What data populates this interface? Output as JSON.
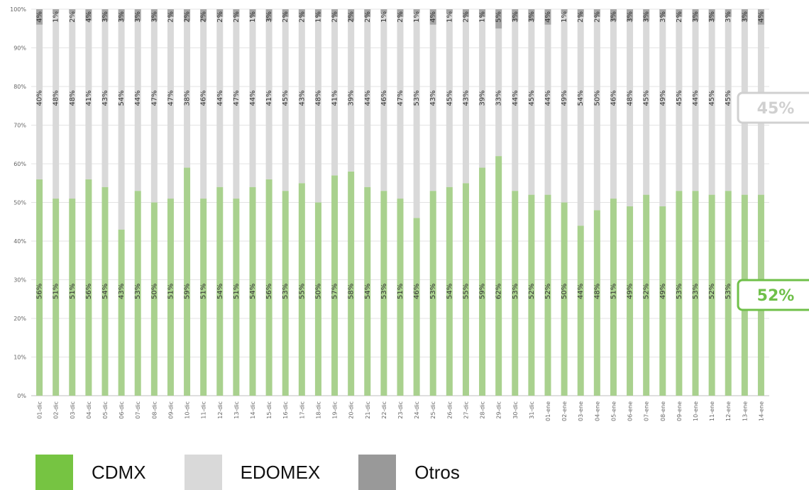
{
  "chart_data": {
    "type": "bar",
    "stacked": true,
    "normalized": true,
    "categories": [
      "01-dic",
      "02-dic",
      "03-dic",
      "04-dic",
      "05-dic",
      "06-dic",
      "07-dic",
      "08-dic",
      "09-dic",
      "10-dic",
      "11-dic",
      "12-dic",
      "13-dic",
      "14-dic",
      "15-dic",
      "16-dic",
      "17-dic",
      "18-dic",
      "19-dic",
      "20-dic",
      "21-dic",
      "22-dic",
      "23-dic",
      "24-dic",
      "25-dic",
      "26-dic",
      "27-dic",
      "28-dic",
      "29-dic",
      "30-dic",
      "31-dic",
      "01-ene",
      "02-ene",
      "03-ene",
      "04-ene",
      "05-ene",
      "06-ene",
      "07-ene",
      "08-ene",
      "09-ene",
      "10-ene",
      "11-ene",
      "12-ene",
      "13-ene",
      "14-ene"
    ],
    "series": [
      {
        "name": "CDMX",
        "color": "#a9d18e",
        "values": [
          56,
          51,
          51,
          56,
          54,
          43,
          53,
          50,
          51,
          59,
          51,
          54,
          51,
          54,
          56,
          53,
          55,
          50,
          57,
          58,
          54,
          53,
          51,
          46,
          53,
          54,
          55,
          59,
          62,
          53,
          52,
          52,
          50,
          44,
          48,
          51,
          49,
          52,
          49,
          53,
          53,
          52,
          53,
          52,
          52
        ],
        "labels": [
          "56%",
          "51%",
          "51%",
          "56%",
          "54%",
          "43%",
          "53%",
          "50%",
          "51%",
          "59%",
          "51%",
          "54%",
          "51%",
          "54%",
          "56%",
          "53%",
          "55%",
          "50%",
          "57%",
          "58%",
          "54%",
          "53%",
          "51%",
          "46%",
          "53%",
          "54%",
          "55%",
          "59%",
          "62%",
          "53%",
          "52%",
          "52%",
          "50%",
          "44%",
          "48%",
          "51%",
          "49%",
          "52%",
          "49%",
          "53%",
          "53%",
          "52%",
          "53%",
          "",
          ""
        ]
      },
      {
        "name": "EDOMEX",
        "color": "#d9d9d9",
        "values": [
          40,
          48,
          48,
          41,
          43,
          54,
          44,
          47,
          47,
          38,
          46,
          44,
          47,
          44,
          41,
          45,
          43,
          48,
          41,
          39,
          44,
          46,
          47,
          53,
          43,
          45,
          43,
          39,
          33,
          44,
          45,
          44,
          49,
          54,
          50,
          46,
          48,
          45,
          49,
          45,
          44,
          45,
          45,
          45,
          44
        ],
        "labels": [
          "40%",
          "48%",
          "48%",
          "41%",
          "43%",
          "54%",
          "44%",
          "47%",
          "47%",
          "38%",
          "46%",
          "44%",
          "47%",
          "44%",
          "41%",
          "45%",
          "43%",
          "48%",
          "41%",
          "39%",
          "44%",
          "46%",
          "47%",
          "53%",
          "43%",
          "45%",
          "43%",
          "39%",
          "33%",
          "44%",
          "45%",
          "44%",
          "49%",
          "54%",
          "50%",
          "46%",
          "48%",
          "45%",
          "49%",
          "45%",
          "44%",
          "45%",
          "45%",
          "",
          ""
        ]
      },
      {
        "name": "Otros",
        "color": "#a6a6a6",
        "values": [
          4,
          1,
          2,
          4,
          3,
          3,
          3,
          3,
          2,
          2,
          2,
          2,
          2,
          1,
          3,
          2,
          2,
          1,
          2,
          2,
          2,
          1,
          2,
          1,
          4,
          1,
          2,
          1,
          5,
          3,
          3,
          4,
          1,
          2,
          2,
          3,
          3,
          3,
          3,
          2,
          3,
          3,
          3,
          3,
          4
        ],
        "labels": [
          "4%",
          "1%",
          "2%",
          "4%",
          "3%",
          "3%",
          "3%",
          "3%",
          "2%",
          "2%",
          "2%",
          "2%",
          "2%",
          "1%",
          "3%",
          "2%",
          "2%",
          "1%",
          "2%",
          "2%",
          "2%",
          "1%",
          "2%",
          "1%",
          "4%",
          "1%",
          "2%",
          "1%",
          "5%",
          "3%",
          "3%",
          "4%",
          "1%",
          "2%",
          "2%",
          "3%",
          "3%",
          "3%",
          "3%",
          "2%",
          "3%",
          "3%",
          "3%",
          "3%",
          "4%"
        ]
      }
    ],
    "y_ticks": [
      "0%",
      "10%",
      "20%",
      "30%",
      "40%",
      "50%",
      "60%",
      "70%",
      "80%",
      "90%",
      "100%"
    ],
    "ylim": [
      0,
      100
    ],
    "grid": "horizontal",
    "callouts": [
      {
        "text": "45%",
        "series": "EDOMEX",
        "color": "#d0d0d0",
        "value": 45
      },
      {
        "text": "52%",
        "series": "CDMX",
        "color": "#70c04a",
        "value": 52
      }
    ]
  },
  "legend": {
    "items": [
      {
        "label": "CDMX",
        "color": "#76c442"
      },
      {
        "label": "EDOMEX",
        "color": "#d9d9d9"
      },
      {
        "label": "Otros",
        "color": "#999999"
      }
    ]
  }
}
